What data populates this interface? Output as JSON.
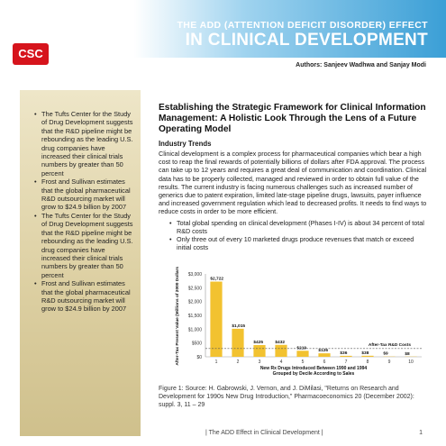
{
  "header": {
    "logo": "CSC",
    "title_line1": "THE ADD (ATTENTION DEFICIT DISORDER) EFFECT",
    "title_line2": "IN CLINICAL DEVELOPMENT",
    "authors": "Authors: Sanjeev Wadhwa and Sanjay Modi"
  },
  "sidebar": {
    "items": [
      "The Tufts Center for the Study of Drug Development suggests that the R&D pipeline might be rebounding as the leading U.S. drug companies have increased their clinical trials numbers by greater than 50 percent",
      "Frost and Sullivan estimates that the global pharmaceutical R&D outsourcing market will grow to $24.9 billion by 2007",
      "The Tufts Center for the Study of Drug Development suggests that the R&D pipeline might be rebounding as the leading U.S. drug companies have increased their clinical trials numbers by greater than 50 percent",
      "Frost and Sullivan estimates that the global pharmaceutical R&D outsourcing market will grow to $24.9 billion by 2007"
    ]
  },
  "article": {
    "headline": "Establishing the Strategic Framework for Clinical Information Management: A Holistic Look Through the Lens of a Future Operating Model",
    "subhead": "Industry Trends",
    "paragraph": "Clinical development is a complex process for pharmaceutical companies which bear a high cost to reap the final rewards of potentially billions of dollars after FDA approval. The process can take up to 12 years and requires a great deal of communication and coordination. Clinical data has to be properly collected, managed and reviewed in order to obtain full value of the results. The current industry is facing numerous challenges such as increased number of generics due to patent expiration, limited late-stage pipeline drugs, lawsuits, payer influence and increased government regulation which lead to decreased profits. It needs to find ways to reduce costs in order to be more efficient.",
    "bullets": [
      "Total global spending on clinical development (Phases I-IV) is about 34 percent of total R&D costs",
      "Only three out of every 10 marketed drugs produce revenues that match or exceed initial costs"
    ]
  },
  "chart_data": {
    "type": "bar",
    "categories": [
      "1",
      "2",
      "3",
      "4",
      "5",
      "6",
      "7",
      "8",
      "9",
      "10"
    ],
    "values": [
      2722,
      1015,
      425,
      432,
      219,
      126,
      36,
      38,
      9,
      8
    ],
    "value_labels": [
      "$2,722",
      "$1,015",
      "$425",
      "$432",
      "$219",
      "$126",
      "$36",
      "$38",
      "$9",
      "$8"
    ],
    "xlabel": "New Rx Drugs Introduced Between 1990 and 1994 Grouped by Decile According to Sales",
    "ylabel": "After-Tax Present Value (Millions of 2000 Dollars)",
    "ylim": [
      0,
      3000
    ],
    "yticks": [
      0,
      500,
      1000,
      1500,
      2000,
      2500,
      3000
    ],
    "ytick_labels": [
      "$0",
      "$500",
      "$1,000",
      "$1,500",
      "$2,000",
      "$2,500",
      "$3,000"
    ],
    "reference_line": {
      "value": 300,
      "label": "After-Tax R&D Costs",
      "style": "dashed"
    },
    "bar_color": "#f2c230",
    "grid": false
  },
  "caption": "Figure 1: Source: H. Gabrowski, J. Vernon, and J. DiMilasi, \"Returns on Research and Development for 1990s New Drug Introduction,\" Pharmacoeconomics 20 (December 2002): suppl. 3, 11 – 29",
  "footer": {
    "text": "|  The ADD Effect in Clinical Development  |",
    "page": "1"
  },
  "colors": {
    "header_blue": "#3b9fd6",
    "logo_red": "#d6141c",
    "sidebar_tan": "#ddd0a3"
  }
}
